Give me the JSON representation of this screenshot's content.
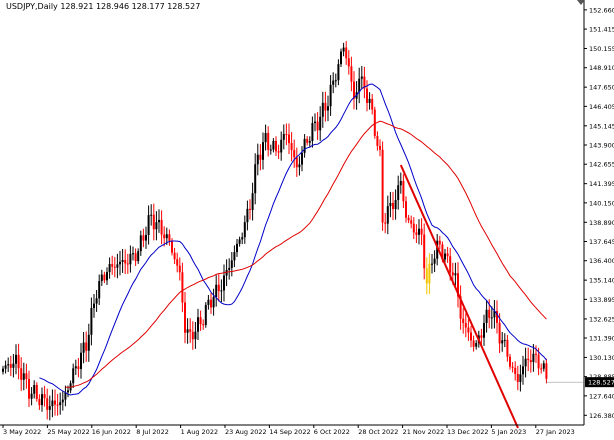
{
  "header": {
    "symbol": "USDJPY,Daily",
    "ohlc": "128.921 128.946 128.177 128.527"
  },
  "chart_data": {
    "type": "candlestick",
    "symbol": "USDJPY",
    "timeframe": "Daily",
    "current_price": "128.527",
    "ylim": [
      125.75,
      153.3
    ],
    "y_ticks": [
      "152.660",
      "151.415",
      "150.155",
      "148.910",
      "147.650",
      "146.405",
      "145.145",
      "143.900",
      "142.655",
      "141.395",
      "140.150",
      "138.890",
      "137.645",
      "136.400",
      "135.140",
      "133.895",
      "132.625",
      "131.390",
      "130.130",
      "128.885",
      "127.640",
      "126.380"
    ],
    "x_ticks": [
      "3 May 2022",
      "25 May 2022",
      "16 Jun 2022",
      "8 Jul 2022",
      "1 Aug 2022",
      "23 Aug 2022",
      "14 Sep 2022",
      "6 Oct 2022",
      "28 Oct 2022",
      "21 Nov 2022",
      "13 Dec 2022",
      "5 Jan 2023",
      "27 Jan 2023"
    ],
    "grid": false,
    "series": [
      {
        "kind": "candles",
        "bull_color": "#000000",
        "bear_color": "#ff0000",
        "highlight_color": "#f5c400"
      },
      {
        "kind": "moving_average",
        "color": "#0000c8"
      },
      {
        "kind": "moving_average",
        "color": "#e00000"
      },
      {
        "kind": "trendline",
        "color": "#e00000"
      }
    ],
    "anchors": [
      [
        0,
        129.4
      ],
      [
        5,
        129.9
      ],
      [
        10,
        128.0
      ],
      [
        18,
        127.0
      ],
      [
        23,
        127.3
      ],
      [
        28,
        129.5
      ],
      [
        32,
        131.0
      ],
      [
        36,
        134.5
      ],
      [
        40,
        135.8
      ],
      [
        44,
        136.2
      ],
      [
        48,
        136.4
      ],
      [
        52,
        137.0
      ],
      [
        55,
        138.5
      ],
      [
        57,
        139.2
      ],
      [
        60,
        138.6
      ],
      [
        64,
        137.6
      ],
      [
        68,
        135.5
      ],
      [
        70,
        132.0
      ],
      [
        72,
        131.5
      ],
      [
        76,
        132.4
      ],
      [
        80,
        133.9
      ],
      [
        84,
        134.8
      ],
      [
        88,
        136.5
      ],
      [
        92,
        138.2
      ],
      [
        95,
        140.0
      ],
      [
        98,
        143.2
      ],
      [
        101,
        144.2
      ],
      [
        105,
        143.5
      ],
      [
        109,
        144.7
      ],
      [
        113,
        142.4
      ],
      [
        116,
        143.9
      ],
      [
        119,
        144.9
      ],
      [
        122,
        145.7
      ],
      [
        125,
        146.8
      ],
      [
        128,
        148.5
      ],
      [
        131,
        150.3
      ],
      [
        133,
        149.0
      ],
      [
        135,
        146.8
      ],
      [
        137,
        148.3
      ],
      [
        139,
        147.6
      ],
      [
        141,
        146.6
      ],
      [
        143,
        145.0
      ],
      [
        145,
        143.0
      ],
      [
        146,
        139.0
      ],
      [
        148,
        139.6
      ],
      [
        151,
        140.4
      ],
      [
        153,
        141.6
      ],
      [
        155,
        139.2
      ],
      [
        158,
        138.4
      ],
      [
        161,
        138.0
      ],
      [
        163,
        134.8
      ],
      [
        165,
        136.6
      ],
      [
        168,
        137.4
      ],
      [
        171,
        136.3
      ],
      [
        174,
        135.3
      ],
      [
        176,
        132.8
      ],
      [
        179,
        131.6
      ],
      [
        182,
        130.8
      ],
      [
        185,
        132.4
      ],
      [
        188,
        133.2
      ],
      [
        191,
        131.6
      ],
      [
        194,
        130.4
      ],
      [
        196,
        129.2
      ],
      [
        198,
        128.7
      ],
      [
        201,
        129.9
      ],
      [
        204,
        130.2
      ],
      [
        207,
        129.6
      ],
      [
        209,
        128.8
      ]
    ],
    "highlight_range": [
      163,
      164
    ]
  }
}
